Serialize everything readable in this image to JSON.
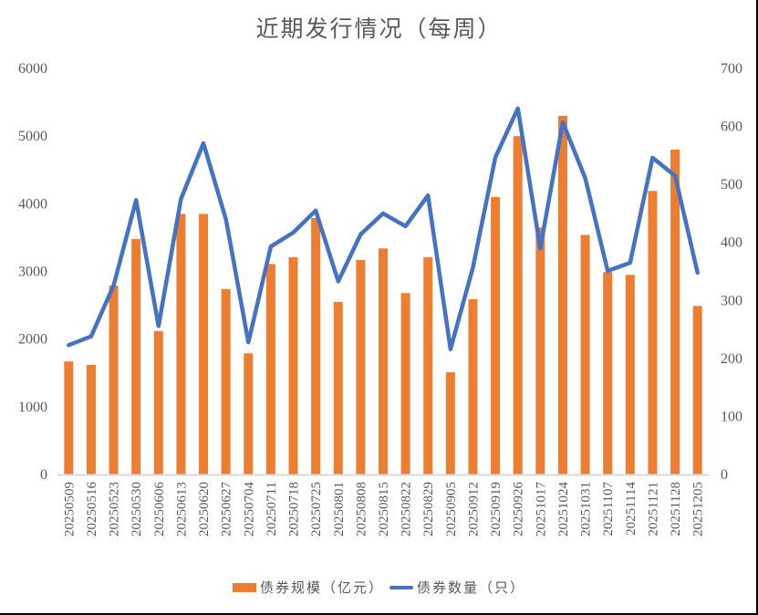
{
  "title": "近期发行情况（每周）",
  "colors": {
    "bar": "#ED7D31",
    "line": "#4472C4",
    "axis": "#D9D9D9",
    "text": "#595959"
  },
  "legend": {
    "bar_label": "债券规模（亿元）",
    "line_label": "债券数量（只）"
  },
  "chart_data": {
    "type": "bar+line",
    "title": "近期发行情况（每周）",
    "xlabel": "",
    "ylabel": "债券规模（亿元）",
    "y2label": "债券数量（只）",
    "ylim": [
      0,
      6000
    ],
    "y2lim": [
      0,
      700
    ],
    "yticks": [
      0,
      1000,
      2000,
      3000,
      4000,
      5000,
      6000
    ],
    "y2ticks": [
      0,
      100,
      200,
      300,
      400,
      500,
      600,
      700
    ],
    "grid": false,
    "legend_position": "bottom",
    "categories": [
      "20250509",
      "20250516",
      "20250523",
      "20250530",
      "20250606",
      "20250613",
      "20250620",
      "20250627",
      "20250704",
      "20250711",
      "20250718",
      "20250725",
      "20250801",
      "20250808",
      "20250815",
      "20250822",
      "20250829",
      "20250905",
      "20250912",
      "20250919",
      "20250926",
      "20251017",
      "20251024",
      "20251031",
      "20251107",
      "20251114",
      "20251121",
      "20251128",
      "20251205"
    ],
    "series": [
      {
        "name": "债券规模（亿元）",
        "type": "bar",
        "axis": "left",
        "values": [
          1670,
          1620,
          2790,
          3480,
          2120,
          3850,
          3850,
          2740,
          1790,
          3110,
          3210,
          3790,
          2550,
          3170,
          3340,
          2680,
          3210,
          1510,
          2590,
          4100,
          5000,
          3650,
          5300,
          3540,
          2990,
          2950,
          4190,
          4800,
          2490
        ]
      },
      {
        "name": "债券数量（只）",
        "type": "line",
        "axis": "right",
        "values": [
          223,
          238,
          326,
          473,
          256,
          475,
          571,
          440,
          228,
          393,
          417,
          455,
          333,
          414,
          450,
          428,
          481,
          216,
          357,
          547,
          631,
          390,
          607,
          511,
          351,
          365,
          546,
          515,
          348
        ]
      }
    ]
  }
}
